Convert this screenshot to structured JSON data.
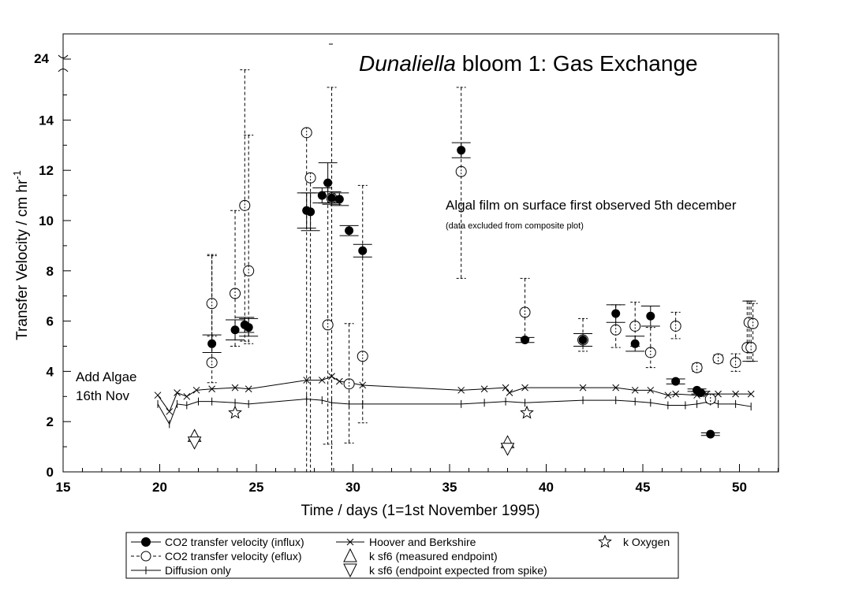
{
  "chart_data": {
    "type": "scatter",
    "title_italic": "Dunaliella",
    "title_rest": " bloom 1: Gas Exchange",
    "xlabel": "Time / days (1=1st November 1995)",
    "ylabel_main": "Transfer Velocity / cm hr",
    "ylabel_sup": "-1",
    "xlim": [
      15,
      52
    ],
    "ylim": [
      0,
      17
    ],
    "x_ticks": [
      15,
      20,
      25,
      30,
      35,
      40,
      45,
      50
    ],
    "y_ticks": [
      0,
      2,
      4,
      6,
      8,
      10,
      12,
      14
    ],
    "y_break_label": "24",
    "grid": false,
    "legend_position": "below plot",
    "annotations": {
      "add_algae_line1": "Add Algae",
      "add_algae_line2": "16th Nov",
      "algal_film": "Algal film on surface first observed 5th december",
      "data_excluded": "(data excluded from composite plot)"
    },
    "series": [
      {
        "name": "CO2 transfer velocity (influx)",
        "marker": "filled-circle",
        "points": [
          {
            "x": 22.7,
            "y": 5.1,
            "err": 0.35
          },
          {
            "x": 23.9,
            "y": 5.65,
            "err": 0.4
          },
          {
            "x": 24.4,
            "y": 5.85,
            "err": 0.3
          },
          {
            "x": 24.6,
            "y": 5.75,
            "err": 0.35
          },
          {
            "x": 27.6,
            "y": 10.4,
            "err": 0.7
          },
          {
            "x": 27.8,
            "y": 10.35,
            "err": 0.75
          },
          {
            "x": 28.4,
            "y": 11.0,
            "err": 0.3
          },
          {
            "x": 28.7,
            "y": 11.5,
            "err": 0.8
          },
          {
            "x": 28.9,
            "y": 10.9,
            "err": 0.25
          },
          {
            "x": 29.3,
            "y": 10.85,
            "err": 0.25
          },
          {
            "x": 29.8,
            "y": 9.6,
            "err": 0.2
          },
          {
            "x": 30.5,
            "y": 8.8,
            "err": 0.25
          },
          {
            "x": 35.6,
            "y": 12.8,
            "err": 0.3
          },
          {
            "x": 38.9,
            "y": 5.25,
            "err": 0.1
          },
          {
            "x": 41.9,
            "y": 5.25,
            "err": 0.25
          },
          {
            "x": 43.6,
            "y": 6.3,
            "err": 0.35
          },
          {
            "x": 44.6,
            "y": 5.1,
            "err": 0.3
          },
          {
            "x": 45.4,
            "y": 6.2,
            "err": 0.4
          },
          {
            "x": 46.7,
            "y": 3.6,
            "err": 0.1
          },
          {
            "x": 47.8,
            "y": 3.25,
            "err": 0.05
          },
          {
            "x": 48.0,
            "y": 3.15,
            "err": 0.05
          },
          {
            "x": 48.5,
            "y": 1.5,
            "err": 0.05
          }
        ]
      },
      {
        "name": "CO2 transfer velocity (eflux)",
        "marker": "open-circle",
        "points": [
          {
            "x": 22.7,
            "y": 4.35,
            "lo": 3.55,
            "hi": 8.65
          },
          {
            "x": 22.7,
            "y": 6.7,
            "lo": 5.4,
            "hi": 8.6
          },
          {
            "x": 23.9,
            "y": 7.1,
            "lo": 5.0,
            "hi": 10.4
          },
          {
            "x": 24.4,
            "y": 10.6,
            "lo": 5.2,
            "hi": 16.0
          },
          {
            "x": 24.6,
            "y": 8.0,
            "lo": 5.1,
            "hi": 13.4
          },
          {
            "x": 27.6,
            "y": 13.5,
            "lo": 0,
            "hi": 13.5
          },
          {
            "x": 27.8,
            "y": 11.7,
            "lo": 0,
            "hi": 11.7
          },
          {
            "x": 28.7,
            "y": 5.85,
            "lo": 1.1,
            "hi": 11.5
          },
          {
            "x": 28.9,
            "y": 10.9,
            "lo": 0,
            "hi": 15.3
          },
          {
            "x": 29.8,
            "y": 3.5,
            "lo": 1.15,
            "hi": 5.9
          },
          {
            "x": 30.5,
            "y": 4.6,
            "lo": 1.95,
            "hi": 11.4
          },
          {
            "x": 35.6,
            "y": 11.95,
            "lo": 7.7,
            "hi": 15.3
          },
          {
            "x": 38.9,
            "y": 6.35,
            "lo": 5.3,
            "hi": 7.7
          },
          {
            "x": 41.9,
            "y": 5.25,
            "lo": 4.8,
            "hi": 6.1
          },
          {
            "x": 43.6,
            "y": 5.65,
            "lo": 4.95,
            "hi": 6.65
          },
          {
            "x": 44.6,
            "y": 5.8,
            "lo": 5.0,
            "hi": 6.75
          },
          {
            "x": 45.4,
            "y": 4.75,
            "lo": 4.15,
            "hi": 5.75
          },
          {
            "x": 46.7,
            "y": 5.8,
            "lo": 5.3,
            "hi": 6.35
          },
          {
            "x": 47.8,
            "y": 4.15,
            "lo": 4.0,
            "hi": 4.3
          },
          {
            "x": 48.5,
            "y": 2.9,
            "lo": 2.75,
            "hi": 3.1
          },
          {
            "x": 48.9,
            "y": 4.5,
            "lo": 4.35,
            "hi": 4.65
          },
          {
            "x": 49.8,
            "y": 4.35,
            "lo": 4.0,
            "hi": 4.7
          },
          {
            "x": 50.4,
            "y": 4.95,
            "lo": 4.4,
            "hi": 6.8
          },
          {
            "x": 50.6,
            "y": 4.95,
            "lo": 4.4,
            "hi": 6.8
          },
          {
            "x": 50.5,
            "y": 5.95,
            "lo": 4.4,
            "hi": 6.8
          },
          {
            "x": 50.7,
            "y": 5.9,
            "lo": 4.4,
            "hi": 6.7
          }
        ]
      },
      {
        "name": "Diffusion only",
        "marker": "plus-line",
        "x": [
          19.9,
          20.5,
          20.9,
          21.4,
          22.0,
          22.7,
          23.9,
          24.6,
          27.6,
          28.4,
          28.9,
          29.8,
          30.5,
          35.6,
          36.8,
          37.9,
          38.9,
          41.9,
          43.6,
          44.6,
          45.4,
          46.3,
          47.2,
          47.8,
          48.5,
          48.9,
          49.8,
          50.6
        ],
        "y": [
          2.7,
          1.9,
          2.7,
          2.65,
          2.8,
          2.8,
          2.75,
          2.7,
          2.9,
          2.85,
          2.75,
          2.7,
          2.7,
          2.7,
          2.75,
          2.8,
          2.75,
          2.85,
          2.85,
          2.8,
          2.75,
          2.65,
          2.65,
          2.7,
          2.8,
          2.7,
          2.7,
          2.6
        ]
      },
      {
        "name": "Hoover and Berkshire",
        "marker": "x-line",
        "x": [
          19.9,
          20.5,
          20.9,
          21.4,
          21.9,
          22.7,
          23.9,
          24.6,
          27.6,
          28.4,
          28.9,
          29.3,
          29.8,
          30.5,
          35.6,
          36.8,
          37.9,
          38.1,
          38.9,
          41.9,
          43.6,
          44.6,
          45.4,
          46.3,
          46.7,
          47.8,
          48.3,
          48.9,
          49.8,
          50.6
        ],
        "y": [
          3.05,
          2.4,
          3.15,
          3.0,
          3.25,
          3.3,
          3.35,
          3.3,
          3.65,
          3.65,
          3.8,
          3.6,
          3.55,
          3.45,
          3.25,
          3.3,
          3.35,
          3.15,
          3.35,
          3.35,
          3.35,
          3.25,
          3.25,
          3.05,
          3.1,
          3.05,
          3.1,
          3.1,
          3.1,
          3.1
        ]
      },
      {
        "name": "k sf6 (measured endpoint)",
        "marker": "triangle-up",
        "x": [
          21.8,
          38.0
        ],
        "y": [
          1.4,
          1.15
        ]
      },
      {
        "name": "k sf6 (endpoint expected from spike)",
        "marker": "triangle-down",
        "x": [
          21.8,
          38.0
        ],
        "y": [
          1.2,
          0.95
        ]
      },
      {
        "name": "k Oxygen",
        "marker": "star",
        "x": [
          23.9,
          39.0
        ],
        "y": [
          2.35,
          2.35
        ]
      }
    ],
    "legend": {
      "influx": "CO2 transfer velocity (influx)",
      "eflux": "CO2 transfer velocity (eflux)",
      "diffusion": "Diffusion only",
      "hoover": "Hoover and Berkshire",
      "sf6_measured": "k sf6 (measured endpoint)",
      "sf6_expected": "k sf6 (endpoint expected from spike)",
      "oxygen": "k Oxygen"
    }
  }
}
